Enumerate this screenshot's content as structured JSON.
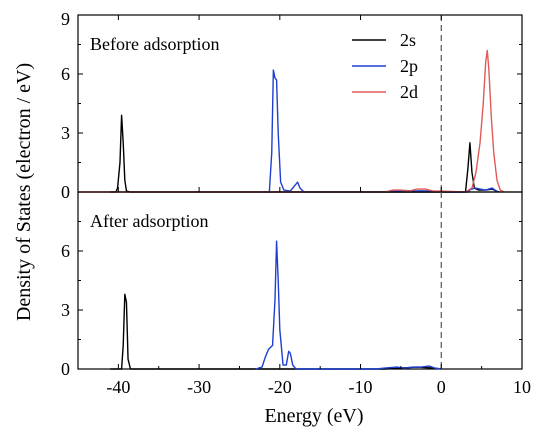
{
  "chart_data": {
    "type": "line",
    "xlabel": "Energy (eV)",
    "ylabel": "Density of States (electron / eV)",
    "xlim": [
      -45,
      10
    ],
    "x_ticks": [
      "-40",
      "-30",
      "-20",
      "-10",
      "0",
      "10"
    ],
    "x_tick_values": [
      -40,
      -30,
      -20,
      -10,
      0,
      10
    ],
    "fermi_level": 0,
    "panels": [
      {
        "annotation": "Before adsorption",
        "ylim": [
          0,
          9
        ],
        "y_ticks": [
          "0",
          "3",
          "6",
          "9"
        ],
        "y_tick_values": [
          0,
          3,
          6,
          9
        ],
        "legend": "top-right",
        "series": [
          {
            "name": "2s",
            "color": "#000000",
            "points": [
              [
                -41,
                0
              ],
              [
                -40.3,
                0
              ],
              [
                -40.1,
                0.2
              ],
              [
                -39.8,
                1.5
              ],
              [
                -39.6,
                3.9
              ],
              [
                -39.4,
                2.5
              ],
              [
                -39.2,
                0.6
              ],
              [
                -39.0,
                0.05
              ],
              [
                -38.5,
                0
              ],
              [
                3.0,
                0
              ],
              [
                3.3,
                1.2
              ],
              [
                3.55,
                2.5
              ],
              [
                3.8,
                1.0
              ],
              [
                4.1,
                0.2
              ],
              [
                4.6,
                0.1
              ],
              [
                5.5,
                0.1
              ],
              [
                6.3,
                0.15
              ],
              [
                6.8,
                0.05
              ],
              [
                7.2,
                0
              ]
            ]
          },
          {
            "name": "2p",
            "color": "#1f3fcf",
            "points": [
              [
                -22,
                0
              ],
              [
                -21.3,
                0
              ],
              [
                -21.0,
                2.0
              ],
              [
                -20.8,
                6.2
              ],
              [
                -20.6,
                5.8
              ],
              [
                -20.4,
                5.7
              ],
              [
                -20.2,
                3.0
              ],
              [
                -19.9,
                0.5
              ],
              [
                -19.5,
                0.1
              ],
              [
                -18.7,
                0.05
              ],
              [
                -18.2,
                0.3
              ],
              [
                -17.8,
                0.5
              ],
              [
                -17.5,
                0.2
              ],
              [
                -17.0,
                0
              ],
              [
                -7,
                0
              ],
              [
                -5.5,
                0.05
              ],
              [
                -4.5,
                0.08
              ],
              [
                -3.5,
                0.05
              ],
              [
                -2.5,
                0.06
              ],
              [
                -1.5,
                0.05
              ],
              [
                -0.5,
                0.04
              ],
              [
                0.5,
                0
              ],
              [
                3.3,
                0
              ],
              [
                3.6,
                0.12
              ],
              [
                4.2,
                0.2
              ],
              [
                4.8,
                0.15
              ],
              [
                5.5,
                0.1
              ],
              [
                6.3,
                0.2
              ],
              [
                7.0,
                0
              ]
            ]
          },
          {
            "name": "2d",
            "color": "#e05a5a",
            "points": [
              [
                -45,
                0
              ],
              [
                -7,
                0
              ],
              [
                -6,
                0.1
              ],
              [
                -5,
                0.1
              ],
              [
                -4,
                0.05
              ],
              [
                -3,
                0.15
              ],
              [
                -2,
                0.15
              ],
              [
                -1,
                0.05
              ],
              [
                0,
                0.05
              ],
              [
                3.0,
                0
              ],
              [
                3.8,
                0.2
              ],
              [
                4.3,
                1.0
              ],
              [
                4.8,
                2.5
              ],
              [
                5.2,
                4.5
              ],
              [
                5.5,
                6.6
              ],
              [
                5.7,
                7.2
              ],
              [
                5.9,
                6.2
              ],
              [
                6.2,
                3.8
              ],
              [
                6.5,
                2.0
              ],
              [
                6.9,
                0.6
              ],
              [
                7.3,
                0.1
              ],
              [
                7.8,
                0
              ]
            ]
          }
        ]
      },
      {
        "annotation": "After adsorption",
        "ylim": [
          0,
          9
        ],
        "y_ticks": [
          "0",
          "3",
          "6"
        ],
        "y_tick_values": [
          0,
          3,
          6
        ],
        "series": [
          {
            "name": "2s",
            "color": "#000000",
            "points": [
              [
                -41,
                0
              ],
              [
                -39.6,
                0
              ],
              [
                -39.4,
                1.2
              ],
              [
                -39.2,
                3.8
              ],
              [
                -39.0,
                3.4
              ],
              [
                -38.8,
                0.5
              ],
              [
                -38.5,
                0
              ],
              [
                -7,
                0
              ],
              [
                -5,
                0.05
              ],
              [
                -3,
                0.1
              ],
              [
                -1,
                0.05
              ],
              [
                0,
                0
              ]
            ]
          },
          {
            "name": "2p",
            "color": "#1f3fcf",
            "points": [
              [
                -23,
                0
              ],
              [
                -22.2,
                0.1
              ],
              [
                -21.8,
                0.6
              ],
              [
                -21.4,
                1.0
              ],
              [
                -20.9,
                1.2
              ],
              [
                -20.6,
                3.5
              ],
              [
                -20.4,
                6.5
              ],
              [
                -20.2,
                4.5
              ],
              [
                -20.0,
                2.0
              ],
              [
                -19.6,
                0.2
              ],
              [
                -19.2,
                0.2
              ],
              [
                -18.9,
                0.9
              ],
              [
                -18.7,
                0.8
              ],
              [
                -18.4,
                0.2
              ],
              [
                -18.0,
                0
              ],
              [
                -8,
                0
              ],
              [
                -7,
                0.05
              ],
              [
                -5.5,
                0.1
              ],
              [
                -4.5,
                0.05
              ],
              [
                -3.5,
                0.1
              ],
              [
                -2.5,
                0.1
              ],
              [
                -1.5,
                0.15
              ],
              [
                -0.8,
                0.05
              ],
              [
                0,
                0
              ]
            ]
          }
        ]
      }
    ]
  }
}
